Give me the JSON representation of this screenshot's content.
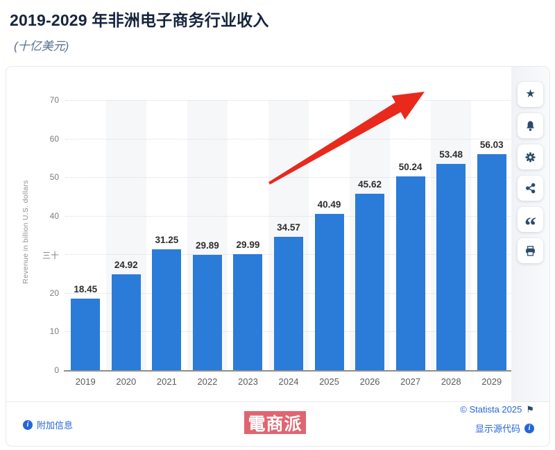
{
  "header": {
    "title": "2019-2029 年非洲电子商务行业收入",
    "subtitle": "(十亿美元)"
  },
  "chart_data": {
    "type": "bar",
    "title": "2019-2029 年非洲电子商务行业收入",
    "subtitle": "(十亿美元)",
    "categories": [
      "2019",
      "2020",
      "2021",
      "2022",
      "2023",
      "2024",
      "2025",
      "2026",
      "2027",
      "2028",
      "2029"
    ],
    "values": [
      18.45,
      24.92,
      31.25,
      29.89,
      29.99,
      34.57,
      40.49,
      45.62,
      50.24,
      53.48,
      56.03
    ],
    "xlabel": "",
    "ylabel": "Revenue in billion U.S. dollars",
    "ylim": [
      0,
      70
    ],
    "ytick_step": 10,
    "ytick_labels": [
      "0",
      "10",
      "20",
      "三十",
      "40",
      "50",
      "60",
      "70"
    ],
    "grid": "horizontal-dotted",
    "plot_bands": "alternating-vertical",
    "legend": "none",
    "data_labels": true,
    "bar_color": "#2b7bd9",
    "label_color": "#2d2d2d"
  },
  "annotation": {
    "type": "growth-arrow-up-right",
    "color": "#e8291c"
  },
  "toolbar": {
    "buttons": [
      {
        "name": "favorite",
        "icon": "star-icon"
      },
      {
        "name": "alerts",
        "icon": "bell-icon"
      },
      {
        "name": "settings",
        "icon": "gear-icon"
      },
      {
        "name": "share",
        "icon": "share-icon"
      },
      {
        "name": "cite",
        "icon": "quote-icon"
      },
      {
        "name": "print",
        "icon": "printer-icon"
      }
    ]
  },
  "footer": {
    "additional_info_label": "附加信息",
    "copyright": "© Statista 2025",
    "flag_icon": "report-flag-icon",
    "show_source_label": "显示源代码"
  },
  "watermark": {
    "text": "電商派",
    "background": "#e06570"
  },
  "colors": {
    "bar": "#2b7bd9",
    "title": "#15233e",
    "subtitle": "#56718f",
    "link": "#2565d8",
    "toolbar_icon": "#2c4a6b",
    "arrow": "#e8291c",
    "watermark_bg": "#e06570"
  }
}
